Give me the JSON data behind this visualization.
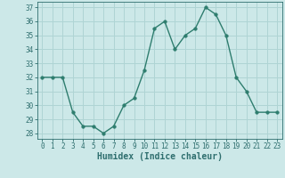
{
  "x": [
    0,
    1,
    2,
    3,
    4,
    5,
    6,
    7,
    8,
    9,
    10,
    11,
    12,
    13,
    14,
    15,
    16,
    17,
    18,
    19,
    20,
    21,
    22,
    23
  ],
  "y": [
    32,
    32,
    32,
    29.5,
    28.5,
    28.5,
    28,
    28.5,
    30,
    30.5,
    32.5,
    35.5,
    36,
    34,
    35,
    35.5,
    37,
    36.5,
    35,
    32,
    31,
    29.5,
    29.5,
    29.5
  ],
  "line_color": "#2e7d6e",
  "marker_color": "#2e7d6e",
  "bg_color": "#cce8e8",
  "grid_color": "#afd4d4",
  "xlabel": "Humidex (Indice chaleur)",
  "ylabel_ticks": [
    28,
    29,
    30,
    31,
    32,
    33,
    34,
    35,
    36,
    37
  ],
  "xlim": [
    -0.5,
    23.5
  ],
  "ylim": [
    27.6,
    37.4
  ],
  "xticks": [
    0,
    1,
    2,
    3,
    4,
    5,
    6,
    7,
    8,
    9,
    10,
    11,
    12,
    13,
    14,
    15,
    16,
    17,
    18,
    19,
    20,
    21,
    22,
    23
  ],
  "tick_color": "#2e6e6e",
  "label_color": "#2e6e6e",
  "axis_color": "#2e6e6e",
  "tick_fontsize": 5.5,
  "xlabel_fontsize": 7.0
}
